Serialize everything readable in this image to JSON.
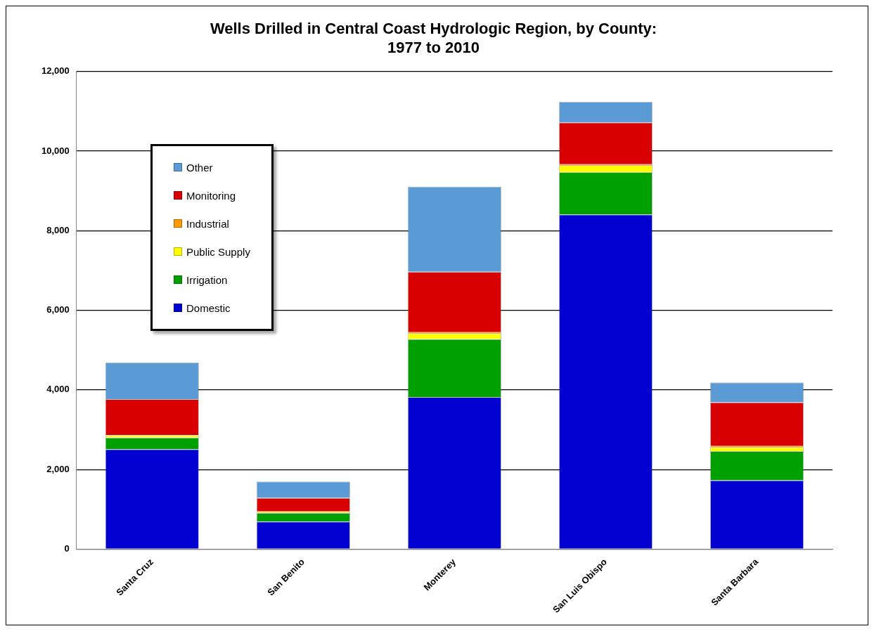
{
  "chart_data": {
    "type": "bar",
    "stacked": true,
    "title": "Wells Drilled in Central Coast Hydrologic Region, by County:\n1977 to 2010",
    "categories": [
      "Santa Cruz",
      "San Benito",
      "Monterey",
      "San Luis Obispo",
      "Santa Barbara"
    ],
    "series": [
      {
        "name": "Domestic",
        "color": "#0000d0",
        "values": [
          2510,
          690,
          3820,
          8410,
          1730
        ]
      },
      {
        "name": "Irrigation",
        "color": "#00a000",
        "values": [
          290,
          220,
          1460,
          1060,
          730
        ]
      },
      {
        "name": "Public Supply",
        "color": "#ffff00",
        "values": [
          60,
          30,
          150,
          180,
          110
        ]
      },
      {
        "name": "Industrial",
        "color": "#ff9900",
        "values": [
          10,
          10,
          20,
          20,
          20
        ]
      },
      {
        "name": "Monitoring",
        "color": "#d80000",
        "values": [
          900,
          340,
          1520,
          1050,
          1100
        ]
      },
      {
        "name": "Other",
        "color": "#5b9bd5",
        "values": [
          920,
          410,
          2140,
          520,
          500
        ]
      }
    ],
    "ylim": [
      0,
      12000
    ],
    "yticks": [
      0,
      {
        "value": 2000,
        "label": "2,000"
      },
      {
        "value": 4000,
        "label": "4,000"
      },
      {
        "value": 6000,
        "label": "6,000"
      },
      {
        "value": 8000,
        "label": "8,000"
      },
      {
        "value": 10000,
        "label": "10,000"
      },
      {
        "value": 12000,
        "label": "12,000"
      }
    ],
    "grid": "y",
    "legend": "top left"
  }
}
